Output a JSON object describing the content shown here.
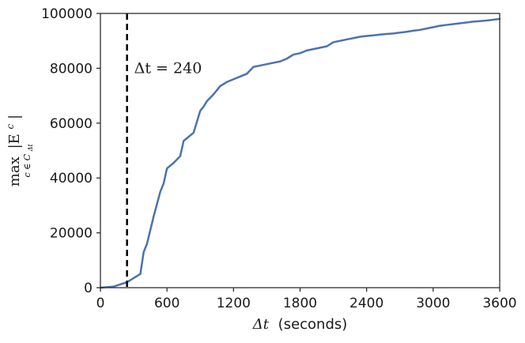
{
  "chart_data": {
    "type": "line",
    "xlabel_math": "Δt",
    "xlabel_text": "(seconds)",
    "ylabel_max": "max",
    "ylabel_sub": "c ∈ C",
    "ylabel_sub_index": "Δt",
    "ylabel_expr": "|E",
    "ylabel_sup": "c",
    "ylabel_close": "|",
    "xlim": [
      0,
      3600
    ],
    "ylim": [
      0,
      100000
    ],
    "x_ticks": [
      0,
      600,
      1200,
      1800,
      2400,
      3000,
      3600
    ],
    "x_tick_labels": [
      "0",
      "600",
      "1200",
      "1800",
      "2400",
      "3000",
      "3600"
    ],
    "y_ticks": [
      0,
      20000,
      40000,
      60000,
      80000,
      100000
    ],
    "y_tick_labels": [
      "0",
      "20000",
      "40000",
      "60000",
      "80000",
      "100000"
    ],
    "grid": false,
    "line_color": "#4c72b0",
    "vline": {
      "x": 240,
      "style": "dashed",
      "color": "#000000",
      "label": "Δt = 240"
    },
    "series": [
      {
        "x": [
          0,
          60,
          120,
          180,
          240,
          300,
          360,
          390,
          420,
          480,
          540,
          570,
          600,
          660,
          720,
          750,
          780,
          840,
          900,
          930,
          960,
          1020,
          1080,
          1140,
          1200,
          1260,
          1320,
          1380,
          1440,
          1500,
          1560,
          1620,
          1680,
          1740,
          1800,
          1860,
          1920,
          1980,
          2040,
          2100,
          2160,
          2220,
          2280,
          2340,
          2400,
          2460,
          2520,
          2580,
          2640,
          2700,
          2760,
          2820,
          2880,
          2940,
          3000,
          3060,
          3120,
          3180,
          3240,
          3300,
          3360,
          3420,
          3480,
          3540,
          3600
        ],
        "y": [
          0,
          200,
          400,
          1200,
          2000,
          3500,
          5000,
          13000,
          16000,
          26000,
          35000,
          38000,
          43500,
          45500,
          48000,
          53500,
          54500,
          56500,
          64500,
          66000,
          68000,
          70500,
          73500,
          75000,
          76000,
          77000,
          78000,
          80500,
          81000,
          81500,
          82000,
          82500,
          83500,
          85000,
          85500,
          86500,
          87000,
          87500,
          88000,
          89500,
          90000,
          90500,
          91000,
          91500,
          91800,
          92000,
          92300,
          92500,
          92700,
          93000,
          93300,
          93700,
          94000,
          94500,
          95000,
          95500,
          95800,
          96100,
          96400,
          96700,
          97000,
          97200,
          97400,
          97700,
          98000
        ]
      }
    ]
  }
}
